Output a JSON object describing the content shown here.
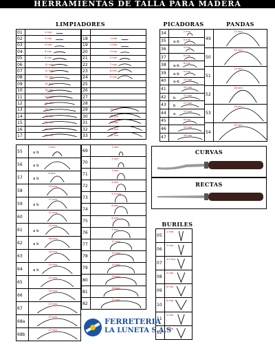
{
  "title": "HERRAMIENTAS DE TALLA PARA MADERA",
  "sections": {
    "limpiadores": "LIMPIADORES",
    "picadoras": "PICADORAS",
    "pandas": "PANDAS",
    "curvas": "CURVAS",
    "rectas": "RECTAS",
    "buriles": "BURILES"
  },
  "limpiadores_left": [
    {
      "n": "01",
      "l": "1 mm",
      "c": 0
    },
    {
      "n": "02",
      "l": "2 mm",
      "c": 0
    },
    {
      "n": "03",
      "l": "4 mm",
      "c": 0.05
    },
    {
      "n": "04",
      "l": "6 mm",
      "c": 0.08
    },
    {
      "n": "05",
      "l": "8 mm",
      "c": 0.1
    },
    {
      "n": "06",
      "l": "10 mm",
      "c": 0.12
    },
    {
      "n": "07",
      "l": "12 mm",
      "c": 0.12
    },
    {
      "n": "08",
      "l": "14 mm",
      "c": 0.13
    },
    {
      "n": "09",
      "l": "16 mm",
      "c": 0.13
    },
    {
      "n": "10",
      "l": "18 mm",
      "c": 0.14
    },
    {
      "n": "11",
      "l": "20 mm",
      "c": 0.14
    },
    {
      "n": "12",
      "l": "24 mm",
      "c": 0.15
    },
    {
      "n": "13",
      "l": "26 mm",
      "c": 0.15
    },
    {
      "n": "14",
      "l": "28 mm",
      "c": 0.16
    },
    {
      "n": "15",
      "l": "30 mm",
      "c": 0.17
    },
    {
      "n": "16",
      "l": "35 mm",
      "c": 0.18
    },
    {
      "n": "17",
      "l": "40 mm",
      "c": 0.2
    }
  ],
  "limpiadores_right": [
    {
      "n": "",
      "l": "",
      "c": 0
    },
    {
      "n": "18",
      "l": "1 mm",
      "c": 0
    },
    {
      "n": "19",
      "l": "2 mm",
      "c": 0
    },
    {
      "n": "20",
      "l": "3 mm",
      "c": 0.05
    },
    {
      "n": "21",
      "l": "5 mm",
      "c": 0.1
    },
    {
      "n": "22",
      "l": "7 mm",
      "c": 0.15
    },
    {
      "n": "23",
      "l": "8 mm",
      "c": 0.2
    },
    {
      "n": "24",
      "l": "9 mm",
      "c": 0.25
    },
    {
      "n": "25",
      "l": "",
      "c": 0
    },
    {
      "n": "26",
      "l": "",
      "c": 0
    },
    {
      "n": "27",
      "l": "",
      "c": 0
    },
    {
      "n": "28",
      "l": "",
      "c": 0
    },
    {
      "n": "29",
      "l": "22 mm",
      "c": 0.28
    },
    {
      "n": "30",
      "l": "25 mm",
      "c": 0.3
    },
    {
      "n": "31",
      "l": "26 mm",
      "c": 0.32
    },
    {
      "n": "32",
      "l": "37 mm",
      "c": 0.35
    },
    {
      "n": "33",
      "l": "40 mm",
      "c": 0.38
    }
  ],
  "picadoras": [
    {
      "n": "34",
      "l": "2 mm",
      "ab": ""
    },
    {
      "n": "35",
      "l": "6 mm",
      "ab": "a-b"
    },
    {
      "n": "36",
      "l": "4 mm",
      "ab": ""
    },
    {
      "n": "37",
      "l": "6 mm",
      "ab": ""
    },
    {
      "n": "38",
      "l": "8 mm",
      "ab": "a-b"
    },
    {
      "n": "39",
      "l": "6 mm",
      "ab": "a-b"
    },
    {
      "n": "40",
      "l": "10 mm",
      "ab": "a-b"
    },
    {
      "n": "41",
      "l": "10 mm",
      "ab": ""
    },
    {
      "n": "42",
      "l": "12 mm",
      "ab": "b"
    },
    {
      "n": "43",
      "l": "11 mm",
      "ab": "b"
    },
    {
      "n": "44",
      "l": "13 mm",
      "ab": "a"
    },
    {
      "n": "45",
      "l": "8 mm",
      "ab": ""
    },
    {
      "n": "46",
      "l": "15 mm",
      "ab": ""
    },
    {
      "n": "47",
      "l": "16 mm",
      "ab": ""
    }
  ],
  "pandas": [
    {
      "n": "49",
      "l": "22 mm"
    },
    {
      "n": "50",
      "l": "25 mm"
    },
    {
      "n": "51",
      "l": "22 mm"
    },
    {
      "n": "52",
      "l": "18 mm"
    },
    {
      "n": "53",
      "l": "28 mm"
    },
    {
      "n": "54",
      "l": "40 mm"
    }
  ],
  "gubias_left": [
    {
      "n": "55",
      "l": "5 mm",
      "ab": "a b"
    },
    {
      "n": "56",
      "l": "",
      "ab": "a b"
    },
    {
      "n": "57",
      "l": "8 mm",
      "ab": "a b"
    },
    {
      "n": "58",
      "l": "13 mm",
      "ab": ""
    },
    {
      "n": "59",
      "l": "12 mm",
      "ab": "a b"
    },
    {
      "n": "60",
      "l": "12 mm",
      "ab": ""
    },
    {
      "n": "61",
      "l": "15 mm",
      "ab": "a b"
    },
    {
      "n": "62",
      "l": "16 mm",
      "ab": "a b"
    },
    {
      "n": "63",
      "l": "16 mm",
      "ab": ""
    },
    {
      "n": "64",
      "l": "20 mm",
      "ab": "a b"
    },
    {
      "n": "65",
      "l": "22 mm",
      "ab": ""
    },
    {
      "n": "66",
      "l": "24 mm",
      "ab": ""
    },
    {
      "n": "67",
      "l": "27 mm",
      "ab": ""
    },
    {
      "n": "68a",
      "l": "27 mm",
      "ab": ""
    },
    {
      "n": "68b",
      "l": "27 mm",
      "ab": ""
    }
  ],
  "gubias_right": [
    {
      "n": "69",
      "l": "1 mm"
    },
    {
      "n": "70",
      "l": "2 mm"
    },
    {
      "n": "71",
      "l": "3 mm"
    },
    {
      "n": "72",
      "l": "4 mm"
    },
    {
      "n": "73",
      "l": "5.5 mm"
    },
    {
      "n": "74",
      "l": "6 mm"
    },
    {
      "n": "75",
      "l": "8 mm"
    },
    {
      "n": "76",
      "l": "9 mm"
    },
    {
      "n": "77",
      "l": "11 mm"
    },
    {
      "n": "78",
      "l": "13 mm"
    },
    {
      "n": "79",
      "l": "14 mm"
    },
    {
      "n": "80",
      "l": "16 mm"
    },
    {
      "n": "81",
      "l": "18 mm"
    },
    {
      "n": "82",
      "l": "21 mm"
    }
  ],
  "buriles": [
    {
      "n": "05",
      "l": "2 mm"
    },
    {
      "n": "06",
      "l": "3 mm"
    },
    {
      "n": "07",
      "l": "4.5 mm"
    },
    {
      "n": "08",
      "l": "5 mm"
    },
    {
      "n": "09",
      "l": "6 mm"
    },
    {
      "n": "10",
      "l": "8 mm"
    },
    {
      "n": "11",
      "l": "4 mm"
    },
    {
      "n": "12",
      "l": "6 mm"
    }
  ],
  "logo": {
    "line1": "FERRETERIA",
    "line2": "LA LUNETA S.A.S"
  },
  "colors": {
    "label": "#cc0000",
    "logo": "#1a55a5"
  }
}
